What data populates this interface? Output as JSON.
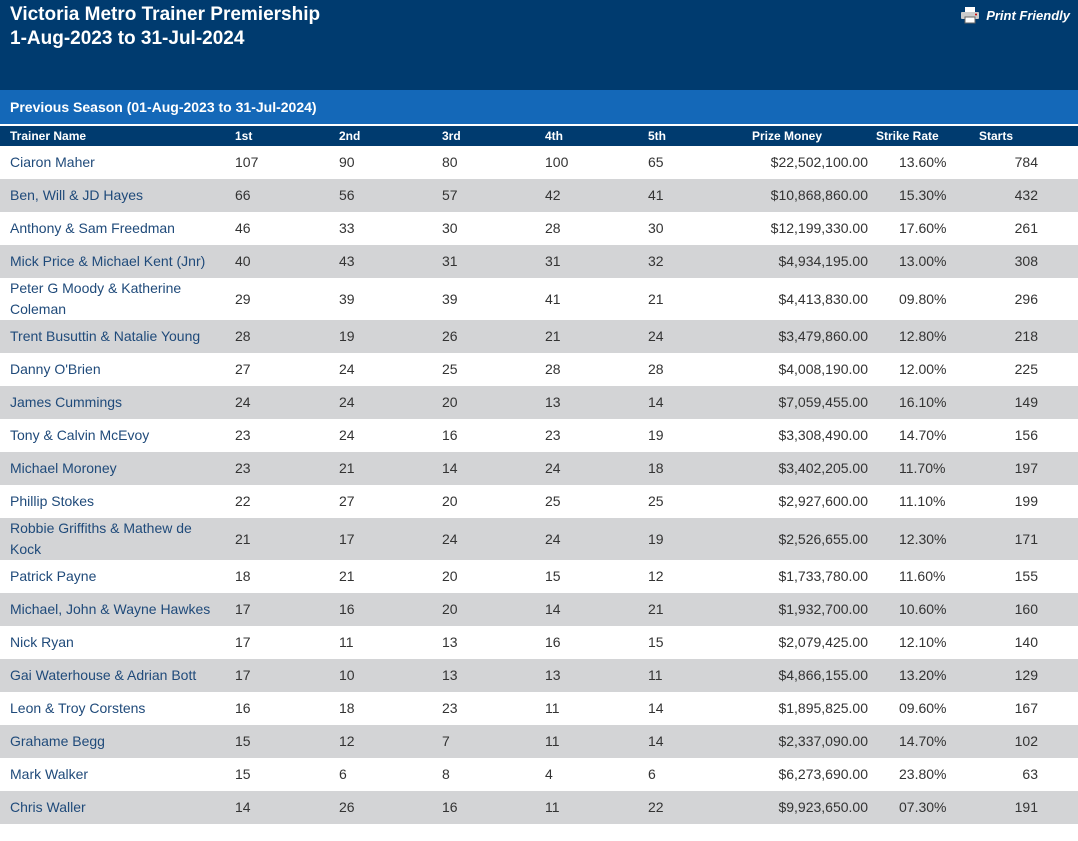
{
  "header": {
    "title": "Victoria Metro Trainer Premiership",
    "subtitle": "1-Aug-2023 to 31-Jul-2024",
    "print_friendly": "Print Friendly"
  },
  "section": "Previous Season (01-Aug-2023 to 31-Jul-2024)",
  "table": {
    "columns": [
      "Trainer Name",
      "1st",
      "2nd",
      "3rd",
      "4th",
      "5th",
      "Prize Money",
      "Strike Rate",
      "Starts"
    ],
    "rows": [
      [
        "Ciaron Maher",
        "107",
        "90",
        "80",
        "100",
        "65",
        "$22,502,100.00",
        "13.60%",
        "784"
      ],
      [
        "Ben, Will & JD Hayes",
        "66",
        "56",
        "57",
        "42",
        "41",
        "$10,868,860.00",
        "15.30%",
        "432"
      ],
      [
        "Anthony & Sam Freedman",
        "46",
        "33",
        "30",
        "28",
        "30",
        "$12,199,330.00",
        "17.60%",
        "261"
      ],
      [
        "Mick Price & Michael Kent (Jnr)",
        "40",
        "43",
        "31",
        "31",
        "32",
        "$4,934,195.00",
        "13.00%",
        "308"
      ],
      [
        "Peter G Moody & Katherine Coleman",
        "29",
        "39",
        "39",
        "41",
        "21",
        "$4,413,830.00",
        "09.80%",
        "296"
      ],
      [
        "Trent Busuttin & Natalie Young",
        "28",
        "19",
        "26",
        "21",
        "24",
        "$3,479,860.00",
        "12.80%",
        "218"
      ],
      [
        "Danny O'Brien",
        "27",
        "24",
        "25",
        "28",
        "28",
        "$4,008,190.00",
        "12.00%",
        "225"
      ],
      [
        "James Cummings",
        "24",
        "24",
        "20",
        "13",
        "14",
        "$7,059,455.00",
        "16.10%",
        "149"
      ],
      [
        "Tony & Calvin McEvoy",
        "23",
        "24",
        "16",
        "23",
        "19",
        "$3,308,490.00",
        "14.70%",
        "156"
      ],
      [
        "Michael Moroney",
        "23",
        "21",
        "14",
        "24",
        "18",
        "$3,402,205.00",
        "11.70%",
        "197"
      ],
      [
        "Phillip Stokes",
        "22",
        "27",
        "20",
        "25",
        "25",
        "$2,927,600.00",
        "11.10%",
        "199"
      ],
      [
        "Robbie Griffiths & Mathew de Kock",
        "21",
        "17",
        "24",
        "24",
        "19",
        "$2,526,655.00",
        "12.30%",
        "171"
      ],
      [
        "Patrick Payne",
        "18",
        "21",
        "20",
        "15",
        "12",
        "$1,733,780.00",
        "11.60%",
        "155"
      ],
      [
        "Michael, John & Wayne Hawkes",
        "17",
        "16",
        "20",
        "14",
        "21",
        "$1,932,700.00",
        "10.60%",
        "160"
      ],
      [
        "Nick Ryan",
        "17",
        "11",
        "13",
        "16",
        "15",
        "$2,079,425.00",
        "12.10%",
        "140"
      ],
      [
        "Gai Waterhouse & Adrian Bott",
        "17",
        "10",
        "13",
        "13",
        "11",
        "$4,866,155.00",
        "13.20%",
        "129"
      ],
      [
        "Leon & Troy Corstens",
        "16",
        "18",
        "23",
        "11",
        "14",
        "$1,895,825.00",
        "09.60%",
        "167"
      ],
      [
        "Grahame Begg",
        "15",
        "12",
        "7",
        "11",
        "14",
        "$2,337,090.00",
        "14.70%",
        "102"
      ],
      [
        "Mark Walker",
        "15",
        "6",
        "8",
        "4",
        "6",
        "$6,273,690.00",
        "23.80%",
        "63"
      ],
      [
        "Chris Waller",
        "14",
        "26",
        "16",
        "11",
        "22",
        "$9,923,650.00",
        "07.30%",
        "191"
      ]
    ]
  }
}
